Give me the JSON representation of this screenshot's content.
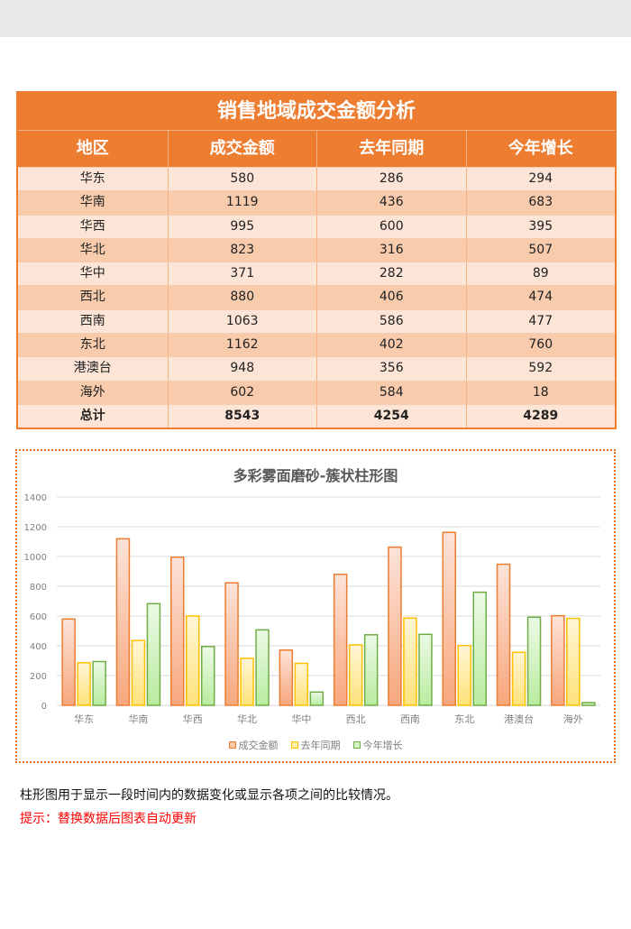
{
  "table": {
    "title": "销售地域成交金额分析",
    "headers": [
      "地区",
      "成交金额",
      "去年同期",
      "今年增长"
    ],
    "rows": [
      [
        "华东",
        "580",
        "286",
        "294"
      ],
      [
        "华南",
        "1119",
        "436",
        "683"
      ],
      [
        "华西",
        "995",
        "600",
        "395"
      ],
      [
        "华北",
        "823",
        "316",
        "507"
      ],
      [
        "华中",
        "371",
        "282",
        "89"
      ],
      [
        "西北",
        "880",
        "406",
        "474"
      ],
      [
        "西南",
        "1063",
        "586",
        "477"
      ],
      [
        "东北",
        "1162",
        "402",
        "760"
      ],
      [
        "港澳台",
        "948",
        "356",
        "592"
      ],
      [
        "海外",
        "602",
        "584",
        "18"
      ]
    ],
    "total": [
      "总计",
      "8543",
      "4254",
      "4289"
    ]
  },
  "chart_data": {
    "type": "bar",
    "title": "多彩雾面磨砂-簇状柱形图",
    "categories": [
      "华东",
      "华南",
      "华西",
      "华北",
      "华中",
      "西北",
      "西南",
      "东北",
      "港澳台",
      "海外"
    ],
    "series": [
      {
        "name": "成交金额",
        "values": [
          580,
          1119,
          995,
          823,
          371,
          880,
          1063,
          1162,
          948,
          602
        ],
        "color": "#ed7d31"
      },
      {
        "name": "去年同期",
        "values": [
          286,
          436,
          600,
          316,
          282,
          406,
          586,
          402,
          356,
          584
        ],
        "color": "#ffc000"
      },
      {
        "name": "今年增长",
        "values": [
          294,
          683,
          395,
          507,
          89,
          474,
          477,
          760,
          592,
          18
        ],
        "color": "#70ad47"
      }
    ],
    "xlabel": "",
    "ylabel": "",
    "ylim": [
      0,
      1400
    ],
    "yticks": [
      0,
      200,
      400,
      600,
      800,
      1000,
      1200,
      1400
    ],
    "grid": true,
    "legend_position": "bottom"
  },
  "footer": {
    "description": "柱形图用于显示一段时间内的数据变化或显示各项之间的比较情况。",
    "hint": "提示：替换数据后图表自动更新"
  }
}
